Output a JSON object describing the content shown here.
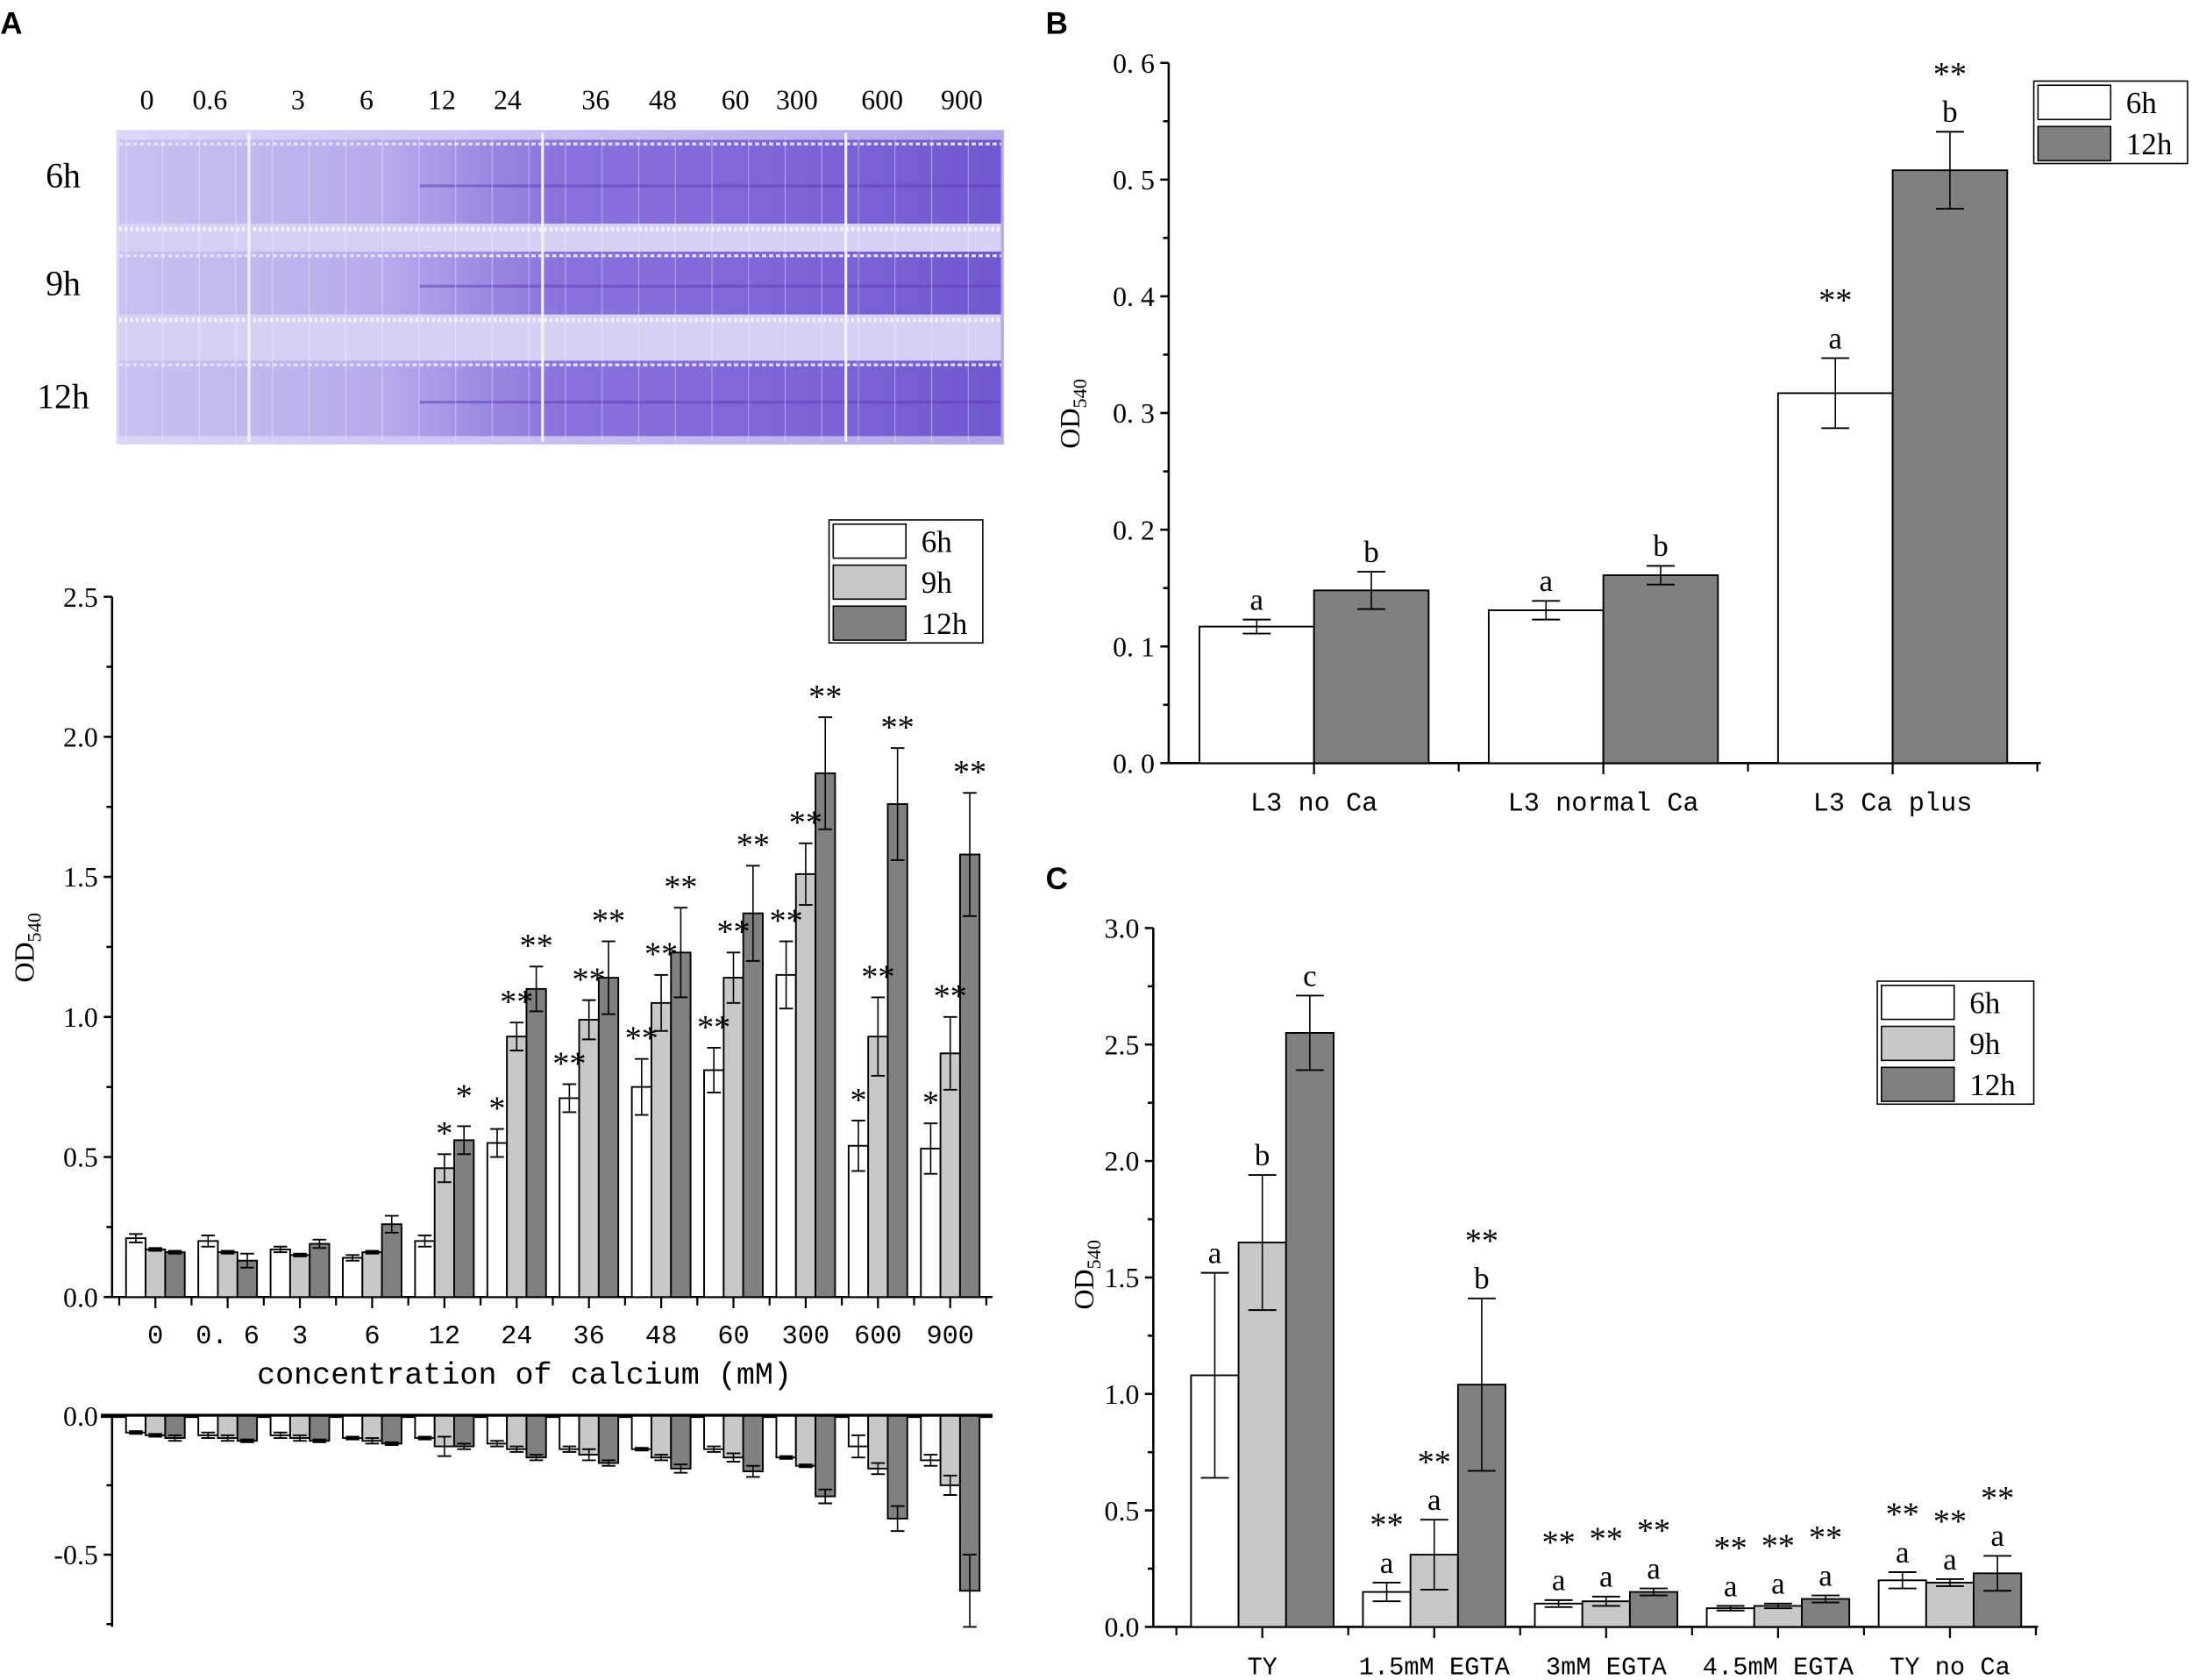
{
  "panels": {
    "a": "A",
    "b": "B",
    "c": "C"
  },
  "colors": {
    "6h": "#ffffff",
    "9h": "#c8c8c8",
    "12h": "#808080",
    "stroke": "#000000",
    "stain": "#7a5fd0"
  },
  "photo": {
    "concentrations": [
      "0",
      "0.6",
      "3",
      "6",
      "12",
      "24",
      "36",
      "48",
      "60",
      "300",
      "600",
      "900"
    ],
    "time_rows": [
      "6h",
      "9h",
      "12h"
    ]
  },
  "chart_data": [
    {
      "id": "A-top",
      "type": "bar",
      "ylabel_main": "OD",
      "ylabel_sub": "540",
      "xlabel": "concentration of calcium (mM)",
      "categories": [
        "0",
        "0. 6",
        "3",
        "6",
        "12",
        "24",
        "36",
        "48",
        "60",
        "300",
        "600",
        "900"
      ],
      "ylim": [
        0,
        2.5
      ],
      "yticks": [
        0,
        0.5,
        1.0,
        1.5,
        2.0,
        2.5
      ],
      "ytick_labels": [
        "0.0",
        "0.5",
        "1.0",
        "1.5",
        "2.0",
        "2.5"
      ],
      "legend": {
        "position": "top-right",
        "entries": [
          "6h",
          "9h",
          "12h"
        ]
      },
      "series": [
        {
          "name": "6h",
          "values": [
            0.21,
            0.2,
            0.17,
            0.14,
            0.2,
            0.55,
            0.71,
            0.75,
            0.81,
            1.15,
            0.54,
            0.53
          ],
          "errors": [
            0.015,
            0.02,
            0.01,
            0.01,
            0.02,
            0.05,
            0.05,
            0.1,
            0.08,
            0.12,
            0.09,
            0.09
          ],
          "annotations": [
            [],
            [],
            [],
            [],
            [],
            [
              "*"
            ],
            [
              "**"
            ],
            [
              "**"
            ],
            [
              "**"
            ],
            [
              "**"
            ],
            [
              "*"
            ],
            [
              "*"
            ]
          ]
        },
        {
          "name": "9h",
          "values": [
            0.17,
            0.16,
            0.15,
            0.16,
            0.46,
            0.93,
            0.99,
            1.05,
            1.14,
            1.51,
            0.93,
            0.87
          ],
          "errors": [
            0.005,
            0.005,
            0.005,
            0.005,
            0.05,
            0.05,
            0.07,
            0.1,
            0.09,
            0.11,
            0.14,
            0.13
          ],
          "annotations": [
            [],
            [],
            [],
            [],
            [
              "*"
            ],
            [
              "**"
            ],
            [
              "**"
            ],
            [
              "**"
            ],
            [
              "**"
            ],
            [
              "**"
            ],
            [
              "**"
            ],
            [
              "**"
            ]
          ]
        },
        {
          "name": "12h",
          "values": [
            0.16,
            0.13,
            0.19,
            0.26,
            0.56,
            1.1,
            1.14,
            1.23,
            1.37,
            1.87,
            1.76,
            1.58
          ],
          "errors": [
            0.005,
            0.025,
            0.015,
            0.03,
            0.05,
            0.08,
            0.13,
            0.16,
            0.17,
            0.2,
            0.2,
            0.22
          ],
          "annotations": [
            [],
            [],
            [],
            [],
            [
              "*"
            ],
            [
              "**"
            ],
            [
              "**"
            ],
            [
              "**"
            ],
            [
              "**"
            ],
            [
              "**"
            ],
            [
              "**"
            ],
            [
              "**"
            ]
          ]
        }
      ]
    },
    {
      "id": "A-bottom",
      "type": "bar",
      "categories": [
        "0",
        "0.6",
        "3",
        "6",
        "12",
        "24",
        "36",
        "48",
        "60",
        "300",
        "600",
        "900"
      ],
      "ylim": [
        -0.76,
        0
      ],
      "yticks": [
        0,
        -0.5
      ],
      "ytick_labels": [
        "0.0",
        "-0.5"
      ],
      "series": [
        {
          "name": "6h",
          "values": [
            -0.06,
            -0.07,
            -0.07,
            -0.08,
            -0.08,
            -0.1,
            -0.12,
            -0.12,
            -0.12,
            -0.15,
            -0.11,
            -0.16
          ],
          "errors": [
            0.005,
            0.01,
            0.01,
            0.005,
            0.005,
            0.01,
            0.01,
            0.005,
            0.01,
            0.005,
            0.04,
            0.02
          ]
        },
        {
          "name": "9h",
          "values": [
            -0.07,
            -0.08,
            -0.08,
            -0.09,
            -0.11,
            -0.12,
            -0.14,
            -0.15,
            -0.15,
            -0.18,
            -0.19,
            -0.25
          ],
          "errors": [
            0.005,
            0.01,
            0.01,
            0.01,
            0.035,
            0.01,
            0.02,
            0.01,
            0.015,
            0.005,
            0.02,
            0.035
          ]
        },
        {
          "name": "12h",
          "values": [
            -0.08,
            -0.09,
            -0.09,
            -0.1,
            -0.11,
            -0.15,
            -0.17,
            -0.19,
            -0.2,
            -0.29,
            -0.37,
            -0.63
          ],
          "errors": [
            0.01,
            0.005,
            0.005,
            0.005,
            0.01,
            0.01,
            0.01,
            0.015,
            0.02,
            0.025,
            0.045,
            0.13
          ]
        }
      ]
    },
    {
      "id": "B",
      "type": "bar",
      "ylabel_main": "OD",
      "ylabel_sub": "540",
      "categories": [
        "L3 no Ca",
        "L3 normal Ca",
        "L3 Ca plus"
      ],
      "ylim": [
        0,
        0.6
      ],
      "yticks": [
        0,
        0.1,
        0.2,
        0.3,
        0.4,
        0.5,
        0.6
      ],
      "ytick_labels": [
        "0. 0",
        "0. 1",
        "0. 2",
        "0. 3",
        "0. 4",
        "0. 5",
        "0. 6"
      ],
      "legend": {
        "position": "top-right",
        "entries": [
          "6h",
          "12h"
        ]
      },
      "series": [
        {
          "name": "6h",
          "values": [
            0.117,
            0.131,
            0.317
          ],
          "errors": [
            0.006,
            0.008,
            0.03
          ],
          "annotations": [
            [
              "a"
            ],
            [
              "a"
            ],
            [
              "**",
              "a"
            ]
          ]
        },
        {
          "name": "12h",
          "values": [
            0.148,
            0.161,
            0.508
          ],
          "errors": [
            0.016,
            0.008,
            0.033
          ],
          "annotations": [
            [
              "b"
            ],
            [
              "b"
            ],
            [
              "**",
              "b"
            ]
          ]
        }
      ]
    },
    {
      "id": "C",
      "type": "bar",
      "ylabel_main": "OD",
      "ylabel_sub": "540",
      "categories": [
        "TY",
        "1.5mM EGTA",
        "3mM EGTA",
        "4.5mM EGTA",
        "TY no Ca"
      ],
      "ylim": [
        0,
        3.0
      ],
      "yticks": [
        0,
        0.5,
        1.0,
        1.5,
        2.0,
        2.5,
        3.0
      ],
      "ytick_labels": [
        "0.0",
        "0.5",
        "1.0",
        "1.5",
        "2.0",
        "2.5",
        "3.0"
      ],
      "legend": {
        "position": "top-right",
        "entries": [
          "6h",
          "9h",
          "12h"
        ]
      },
      "series": [
        {
          "name": "6h",
          "values": [
            1.08,
            0.15,
            0.1,
            0.08,
            0.2
          ],
          "errors": [
            0.44,
            0.04,
            0.015,
            0.01,
            0.035
          ],
          "annotations": [
            [
              "a"
            ],
            [
              "**",
              "a"
            ],
            [
              "**",
              "a"
            ],
            [
              "**",
              "a"
            ],
            [
              "**",
              "a"
            ]
          ]
        },
        {
          "name": "9h",
          "values": [
            1.65,
            0.31,
            0.11,
            0.09,
            0.19
          ],
          "errors": [
            0.29,
            0.15,
            0.02,
            0.01,
            0.015
          ],
          "annotations": [
            [
              "b"
            ],
            [
              "**",
              "a"
            ],
            [
              "**",
              "a"
            ],
            [
              "**",
              "a"
            ],
            [
              "**",
              "a"
            ]
          ]
        },
        {
          "name": "12h",
          "values": [
            2.55,
            1.04,
            0.15,
            0.12,
            0.23
          ],
          "errors": [
            0.16,
            0.37,
            0.015,
            0.015,
            0.075
          ],
          "annotations": [
            [
              "c"
            ],
            [
              "**",
              "b"
            ],
            [
              "**",
              "a"
            ],
            [
              "**",
              "a"
            ],
            [
              "**",
              "a"
            ]
          ]
        }
      ]
    }
  ]
}
